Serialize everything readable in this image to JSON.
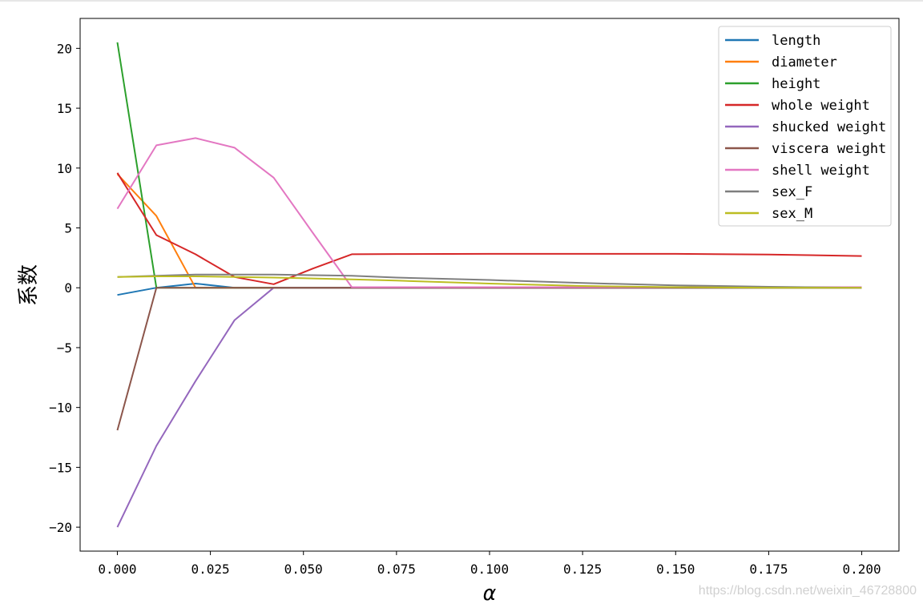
{
  "watermark": "https://blog.csdn.net/weixin_46728800",
  "chart_data": {
    "type": "line",
    "xlabel": "α",
    "ylabel": "系数",
    "xlim": [
      -0.01,
      0.21
    ],
    "ylim": [
      -22,
      22.5
    ],
    "xticks": [
      0.0,
      0.025,
      0.05,
      0.075,
      0.1,
      0.125,
      0.15,
      0.175,
      0.2
    ],
    "xtick_labels": [
      "0.000",
      "0.025",
      "0.050",
      "0.075",
      "0.100",
      "0.125",
      "0.150",
      "0.175",
      "0.200"
    ],
    "yticks": [
      20,
      15,
      10,
      5,
      0,
      -5,
      -10,
      -15,
      -20
    ],
    "ytick_labels": [
      "20",
      "15",
      "10",
      "5",
      "0",
      "−5",
      "−10",
      "−15",
      "−20"
    ],
    "grid": false,
    "legend_position": "top-right",
    "series": [
      {
        "name": "length",
        "color": "#1f77b4",
        "x": [
          0.0,
          0.0105,
          0.021,
          0.0315,
          0.042,
          0.0525,
          0.063,
          0.1,
          0.15,
          0.2
        ],
        "y": [
          -0.6,
          0.0,
          0.35,
          0.0,
          0.0,
          0.0,
          0.0,
          0.0,
          0.0,
          0.0
        ]
      },
      {
        "name": "diameter",
        "color": "#ff7f0e",
        "x": [
          0.0,
          0.0105,
          0.021,
          0.0315,
          0.063,
          0.1,
          0.15,
          0.2
        ],
        "y": [
          9.5,
          6.0,
          0.0,
          0.0,
          0.0,
          0.0,
          0.0,
          0.0
        ]
      },
      {
        "name": "height",
        "color": "#2ca02c",
        "x": [
          0.0,
          0.0105,
          0.021,
          0.063,
          0.1,
          0.15,
          0.2
        ],
        "y": [
          20.5,
          0.0,
          0.0,
          0.0,
          0.0,
          0.0,
          0.0
        ]
      },
      {
        "name": "whole weight",
        "color": "#d62728",
        "x": [
          0.0,
          0.0105,
          0.021,
          0.0315,
          0.042,
          0.0525,
          0.063,
          0.075,
          0.1,
          0.125,
          0.15,
          0.175,
          0.2
        ],
        "y": [
          9.6,
          4.4,
          2.8,
          0.9,
          0.3,
          1.6,
          2.8,
          2.82,
          2.83,
          2.83,
          2.83,
          2.78,
          2.65
        ]
      },
      {
        "name": "shucked weight",
        "color": "#9467bd",
        "x": [
          0.0,
          0.0105,
          0.021,
          0.0315,
          0.042,
          0.0525,
          0.063,
          0.1,
          0.15,
          0.2
        ],
        "y": [
          -20.0,
          -13.2,
          -7.8,
          -2.7,
          0.0,
          0.0,
          0.0,
          0.0,
          0.0,
          0.0
        ]
      },
      {
        "name": "viscera weight",
        "color": "#8c564b",
        "x": [
          0.0,
          0.0105,
          0.021,
          0.063,
          0.1,
          0.15,
          0.2
        ],
        "y": [
          -11.9,
          0.0,
          0.0,
          0.0,
          0.0,
          0.0,
          0.0
        ]
      },
      {
        "name": "shell weight",
        "color": "#e377c2",
        "x": [
          0.0,
          0.0105,
          0.021,
          0.0315,
          0.042,
          0.0525,
          0.063,
          0.1,
          0.15,
          0.2
        ],
        "y": [
          6.6,
          11.9,
          12.5,
          11.7,
          9.2,
          4.6,
          0.05,
          0.05,
          0.05,
          0.05
        ]
      },
      {
        "name": "sex_F",
        "color": "#7f7f7f",
        "x": [
          0.0,
          0.0105,
          0.021,
          0.0315,
          0.042,
          0.0525,
          0.063,
          0.075,
          0.1,
          0.125,
          0.15,
          0.175,
          0.2
        ],
        "y": [
          0.9,
          1.0,
          1.1,
          1.1,
          1.1,
          1.05,
          1.0,
          0.85,
          0.65,
          0.4,
          0.2,
          0.08,
          0.0
        ]
      },
      {
        "name": "sex_M",
        "color": "#bcbd22",
        "x": [
          0.0,
          0.0105,
          0.021,
          0.0315,
          0.042,
          0.0525,
          0.063,
          0.075,
          0.1,
          0.125,
          0.15,
          0.175,
          0.2
        ],
        "y": [
          0.9,
          0.95,
          0.95,
          0.9,
          0.85,
          0.78,
          0.7,
          0.6,
          0.35,
          0.15,
          0.05,
          0.0,
          0.0
        ]
      }
    ]
  }
}
